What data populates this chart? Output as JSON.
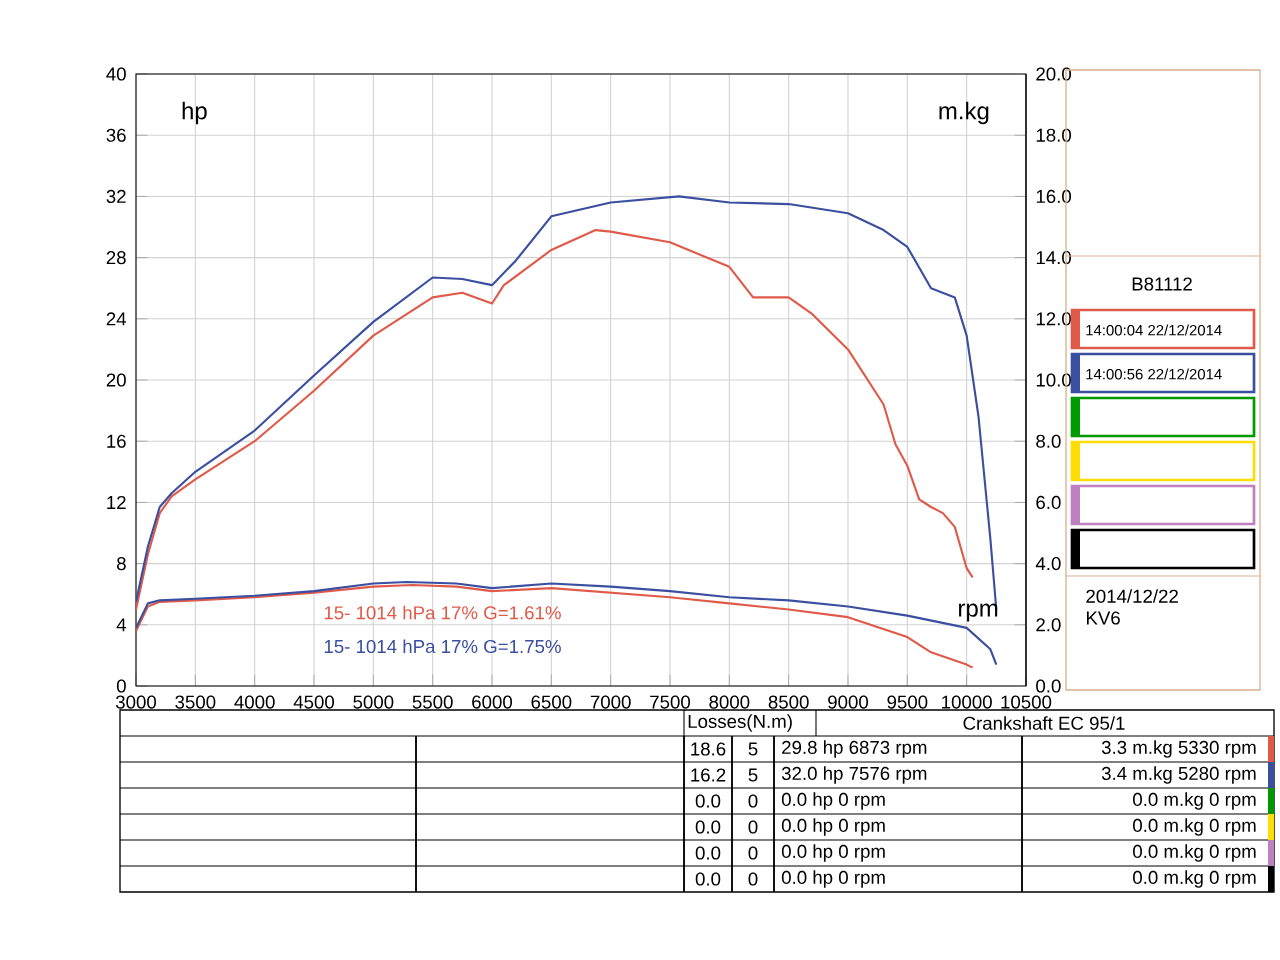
{
  "chart_data": {
    "type": "line",
    "xlabel": "rpm",
    "ylabel": "hp",
    "y2label": "m.kg",
    "xlim": [
      3000,
      10500
    ],
    "xticks": [
      3000,
      3500,
      4000,
      4500,
      5000,
      5500,
      6000,
      6500,
      7000,
      7500,
      8000,
      8500,
      9000,
      9500,
      10000,
      10500
    ],
    "ylim": [
      0,
      40
    ],
    "yticks": [
      0,
      4,
      8,
      12,
      16,
      20,
      24,
      28,
      32,
      36,
      40
    ],
    "y2lim": [
      0,
      20
    ],
    "y2ticks": [
      {
        "value": 0,
        "label": "0.0"
      },
      {
        "value": 2,
        "label": "2.0"
      },
      {
        "value": 4,
        "label": "4.0"
      },
      {
        "value": 6,
        "label": "6.0"
      },
      {
        "value": 8,
        "label": "8.0"
      },
      {
        "value": 10,
        "label": "10.0"
      },
      {
        "value": 12,
        "label": "12.0"
      },
      {
        "value": 14,
        "label": "14.0"
      },
      {
        "value": 16,
        "label": "16.0"
      },
      {
        "value": 18,
        "label": "18.0"
      },
      {
        "value": 20,
        "label": "20.0"
      }
    ],
    "grid": true,
    "series": [
      {
        "name": "15- 1014 hPa 17% G=1.61%",
        "color": "#e05a4a",
        "x": [
          3000,
          3100,
          3200,
          3300,
          3500,
          4000,
          4500,
          5000,
          5500,
          5750,
          6000,
          6100,
          6500,
          6873,
          7000,
          7500,
          8000,
          8200,
          8500,
          8700,
          9000,
          9300,
          9400,
          9500,
          9600,
          9700,
          9800,
          9900,
          10000,
          10050
        ],
        "values": [
          5.0,
          8.6,
          11.3,
          12.4,
          13.5,
          16.0,
          19.3,
          22.9,
          25.4,
          25.7,
          25.0,
          26.2,
          28.5,
          29.8,
          29.7,
          29.0,
          27.4,
          25.4,
          25.4,
          24.3,
          22.0,
          18.4,
          15.8,
          14.4,
          12.2,
          11.7,
          11.3,
          10.4,
          7.7,
          7.1
        ]
      },
      {
        "name": "15- 1014 hPa 17% G=1.75%",
        "color": "#3a4fa0",
        "x": [
          3000,
          3100,
          3200,
          3300,
          3500,
          4000,
          4500,
          5000,
          5500,
          5750,
          6000,
          6200,
          6500,
          7000,
          7576,
          8000,
          8500,
          9000,
          9300,
          9500,
          9700,
          9900,
          10000,
          10100,
          10200,
          10250
        ],
        "values": [
          5.5,
          9.1,
          11.7,
          12.6,
          14.0,
          16.7,
          20.3,
          23.8,
          26.7,
          26.6,
          26.2,
          27.8,
          30.7,
          31.6,
          32.0,
          31.6,
          31.5,
          30.9,
          29.8,
          28.7,
          26.0,
          25.4,
          22.9,
          17.6,
          9.6,
          5.0
        ]
      },
      {
        "color": "#e05a4a",
        "axis": "y2",
        "x": [
          3000,
          3100,
          3200,
          3500,
          4000,
          4500,
          5000,
          5330,
          5700,
          6000,
          6500,
          7000,
          7500,
          8000,
          8500,
          9000,
          9500,
          9700,
          10000,
          10050
        ],
        "values": [
          1.8,
          2.6,
          2.75,
          2.8,
          2.9,
          3.05,
          3.25,
          3.3,
          3.25,
          3.1,
          3.2,
          3.05,
          2.9,
          2.7,
          2.5,
          2.25,
          1.6,
          1.1,
          0.7,
          0.6
        ]
      },
      {
        "color": "#3a4fa0",
        "axis": "y2",
        "x": [
          3000,
          3100,
          3200,
          3500,
          4000,
          4500,
          5000,
          5280,
          5700,
          6000,
          6500,
          7000,
          7500,
          8000,
          8500,
          9000,
          9500,
          10000,
          10200,
          10250
        ],
        "values": [
          1.9,
          2.7,
          2.8,
          2.85,
          2.95,
          3.1,
          3.35,
          3.4,
          3.35,
          3.2,
          3.35,
          3.25,
          3.1,
          2.9,
          2.8,
          2.6,
          2.3,
          1.9,
          1.2,
          0.7
        ]
      }
    ],
    "annotations": [
      "B81112",
      "14:00:04 22/12/2014",
      "14:00:56 22/12/2014",
      "2014/12/22",
      "KV6",
      "Losses(N.m)",
      "Crankshaft EC 95/1",
      "18.6",
      "5",
      "29.8 hp 6873 rpm",
      "3.3 m.kg 5330 rpm",
      "16.2",
      "5",
      "32.0 hp 7576 rpm",
      "3.4 m.kg 5280 rpm",
      "0.0",
      "0",
      "0.0 hp 0 rpm",
      "0.0 m.kg 0 rpm",
      "0.0",
      "0",
      "0.0 hp 0 rpm",
      "0.0 m.kg 0 rpm",
      "0.0",
      "0",
      "0.0 hp 0 rpm",
      "0.0 m.kg 0 rpm",
      "0.0",
      "0",
      "0.0 hp 0 rpm",
      "0.0 m.kg 0 rpm"
    ]
  }
}
